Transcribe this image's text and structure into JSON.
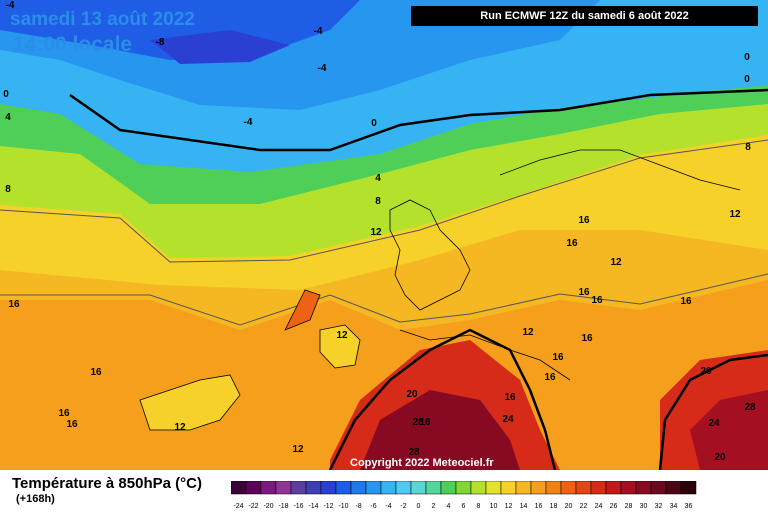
{
  "header": {
    "date": "samedi 13 août 2022",
    "time": "14:00 locale",
    "run": "Run ECMWF 12Z du samedi 6 août 2022"
  },
  "copyright": "Copyright 2022 Meteociel.fr",
  "legend": {
    "title": "Température à 850hPa (°C)",
    "subtitle": "(+168h)",
    "unit": "°C",
    "ticks": [
      "-24",
      "-22",
      "-20",
      "-18",
      "-16",
      "-14",
      "-12",
      "-10",
      "-8",
      "-6",
      "-4",
      "-2",
      "0",
      "2",
      "4",
      "6",
      "8",
      "10",
      "12",
      "14",
      "16",
      "18",
      "20",
      "22",
      "24",
      "26",
      "28",
      "30",
      "32",
      "34",
      "36"
    ],
    "colors": [
      "#3a0038",
      "#5c005a",
      "#7a1a7e",
      "#8e3595",
      "#5a3f9c",
      "#3f3fb4",
      "#2a40d2",
      "#1f5de6",
      "#2079ea",
      "#2796ee",
      "#36b3f2",
      "#4fcaf2",
      "#5ad6d2",
      "#52d79a",
      "#4fcf57",
      "#7fd634",
      "#b4e22c",
      "#e4e32b",
      "#f5d12a",
      "#f5b822",
      "#f59f1c",
      "#f28116",
      "#ee6214",
      "#e34514",
      "#d52b18",
      "#c01a1d",
      "#a40f21",
      "#870a22",
      "#690a1f",
      "#4a0714",
      "#2a0408"
    ]
  },
  "map_labels": [
    {
      "text": "-4"
    },
    {
      "text": "-8"
    },
    {
      "text": "-4"
    },
    {
      "text": "-4"
    },
    {
      "text": "-4"
    },
    {
      "text": "0"
    },
    {
      "text": "0"
    },
    {
      "text": "0"
    },
    {
      "text": "0"
    },
    {
      "text": "4"
    },
    {
      "text": "4"
    },
    {
      "text": "8"
    },
    {
      "text": "8"
    },
    {
      "text": "8"
    },
    {
      "text": "12"
    },
    {
      "text": "12"
    },
    {
      "text": "12"
    },
    {
      "text": "12"
    },
    {
      "text": "12"
    },
    {
      "text": "12"
    },
    {
      "text": "12"
    },
    {
      "text": "16"
    },
    {
      "text": "16"
    },
    {
      "text": "16"
    },
    {
      "text": "16"
    },
    {
      "text": "16"
    },
    {
      "text": "16"
    },
    {
      "text": "16"
    },
    {
      "text": "16"
    },
    {
      "text": "16"
    },
    {
      "text": "16"
    },
    {
      "text": "16"
    },
    {
      "text": "16"
    },
    {
      "text": "16"
    },
    {
      "text": "16"
    },
    {
      "text": "20"
    },
    {
      "text": "20"
    },
    {
      "text": "20"
    },
    {
      "text": "24"
    },
    {
      "text": "24"
    },
    {
      "text": "28"
    },
    {
      "text": "28"
    },
    {
      "text": "28"
    }
  ]
}
